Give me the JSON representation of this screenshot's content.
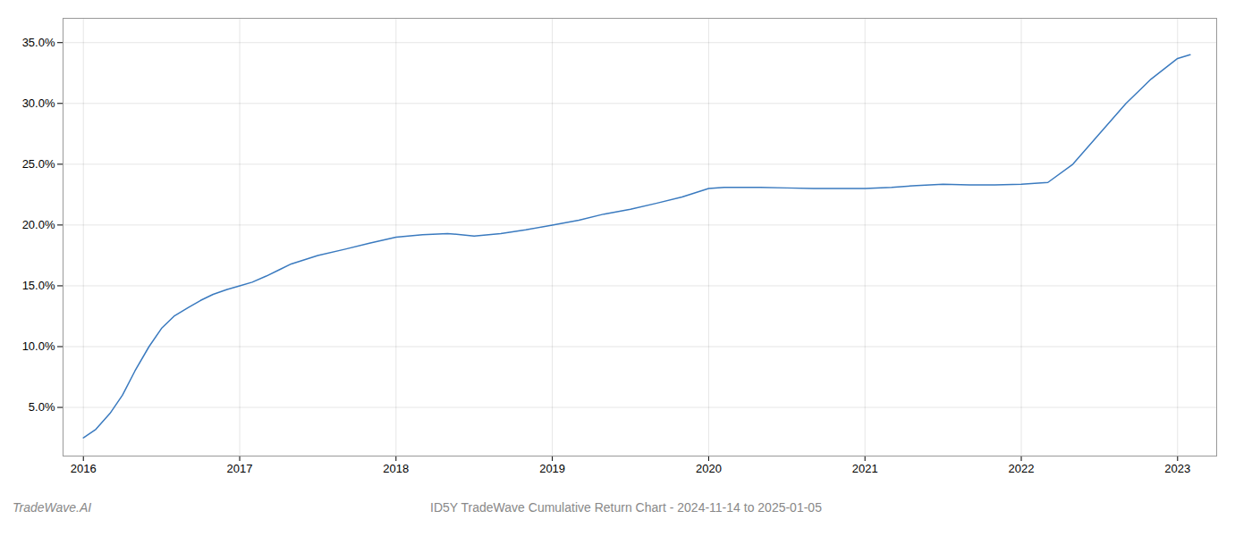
{
  "chart_data": {
    "type": "line",
    "title": "ID5Y TradeWave Cumulative Return Chart - 2024-11-14 to 2025-01-05",
    "annotations": [
      "TradeWave.AI"
    ],
    "color": "#3a7abf",
    "x": [
      2016.0,
      2016.08,
      2016.17,
      2016.25,
      2016.33,
      2016.42,
      2016.5,
      2016.58,
      2016.67,
      2016.75,
      2016.83,
      2016.92,
      2017.0,
      2017.08,
      2017.17,
      2017.25,
      2017.33,
      2017.5,
      2017.67,
      2017.83,
      2018.0,
      2018.17,
      2018.33,
      2018.5,
      2018.67,
      2018.83,
      2019.0,
      2019.17,
      2019.33,
      2019.5,
      2019.67,
      2019.83,
      2020.0,
      2020.1,
      2020.2,
      2020.33,
      2020.5,
      2020.67,
      2020.83,
      2021.0,
      2021.17,
      2021.33,
      2021.5,
      2021.67,
      2021.83,
      2022.0,
      2022.17,
      2022.33,
      2022.5,
      2022.67,
      2022.83,
      2023.0,
      2023.08
    ],
    "values": [
      2.5,
      3.2,
      4.5,
      6.0,
      8.0,
      10.0,
      11.5,
      12.5,
      13.2,
      13.8,
      14.3,
      14.7,
      15.0,
      15.3,
      15.8,
      16.3,
      16.8,
      17.5,
      18.0,
      18.5,
      19.0,
      19.2,
      19.3,
      19.1,
      19.3,
      19.6,
      20.0,
      20.4,
      20.9,
      21.3,
      21.8,
      22.3,
      23.0,
      23.1,
      23.1,
      23.1,
      23.05,
      23.0,
      23.0,
      23.0,
      23.1,
      23.25,
      23.35,
      23.3,
      23.3,
      23.35,
      23.5,
      25.0,
      27.5,
      30.0,
      32.0,
      33.7,
      34.0
    ],
    "xlim": [
      2015.87,
      2023.25
    ],
    "xticks": [
      2016,
      2017,
      2018,
      2019,
      2020,
      2021,
      2022,
      2023
    ],
    "ylim": [
      1.0,
      37.0
    ],
    "yticks": [
      {
        "value": 5.0,
        "label": "5.0%"
      },
      {
        "value": 10.0,
        "label": "10.0%"
      },
      {
        "value": 15.0,
        "label": "15.0%"
      },
      {
        "value": 20.0,
        "label": "20.0%"
      },
      {
        "value": 25.0,
        "label": "25.0%"
      },
      {
        "value": 30.0,
        "label": "30.0%"
      },
      {
        "value": 35.0,
        "label": "35.0%"
      }
    ],
    "grid": true
  }
}
